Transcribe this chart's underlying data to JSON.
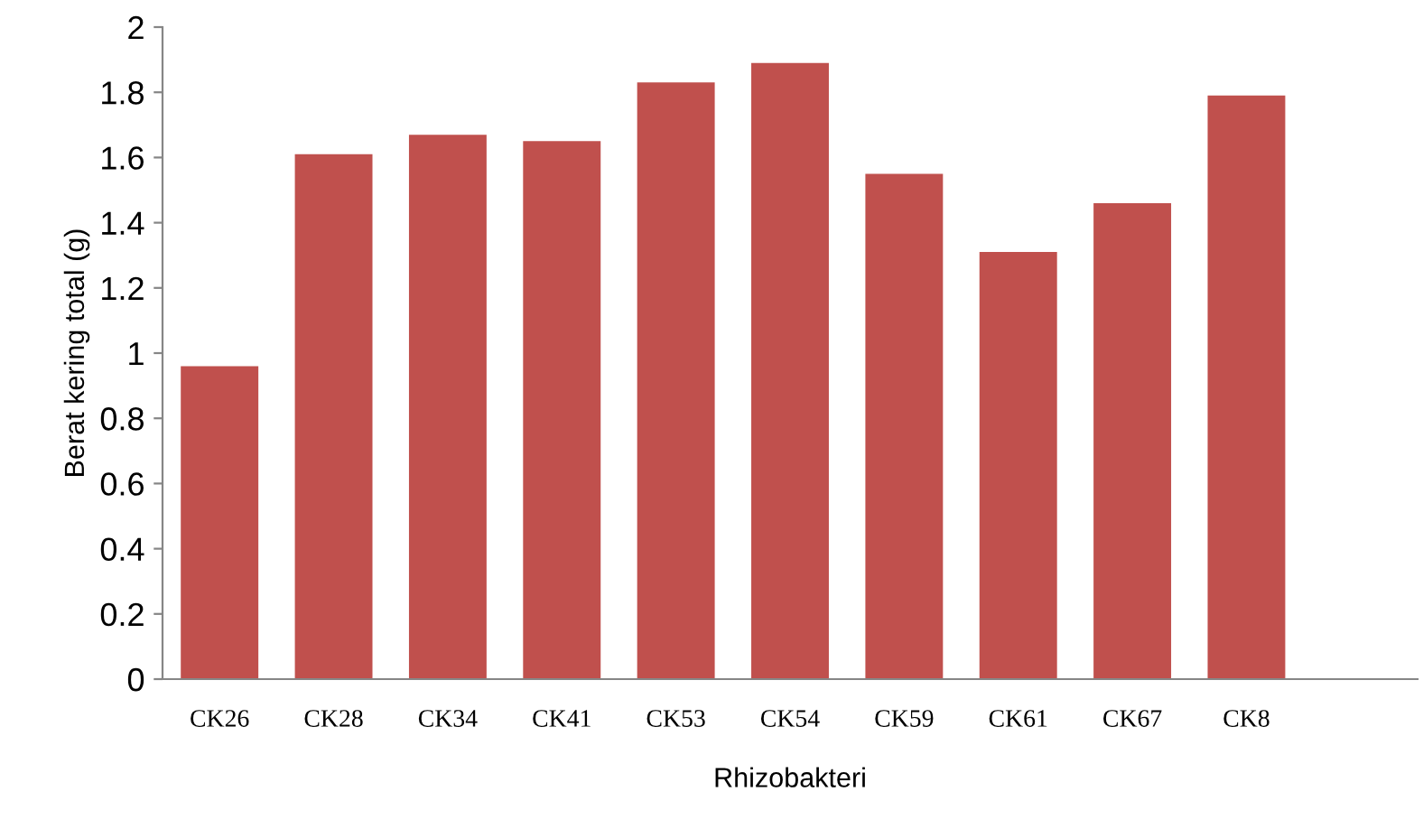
{
  "chart_data": {
    "type": "bar",
    "xlabel": "Rhizobakteri",
    "ylabel": "Berat kering total (g)",
    "categories": [
      "CK26",
      "CK28",
      "CK34",
      "CK41",
      "CK53",
      "CK54",
      "CK59",
      "CK61",
      "CK67",
      "CK8",
      null
    ],
    "values": [
      0.96,
      1.61,
      1.67,
      1.65,
      1.83,
      1.89,
      1.55,
      1.31,
      1.46,
      1.79,
      null
    ],
    "color": "#c0504d",
    "ylim": [
      0,
      2
    ],
    "yticks": [
      0,
      0.2,
      0.4,
      0.6,
      0.8,
      1,
      1.2,
      1.4,
      1.6,
      1.8,
      2
    ],
    "grid": false,
    "legend": false
  }
}
